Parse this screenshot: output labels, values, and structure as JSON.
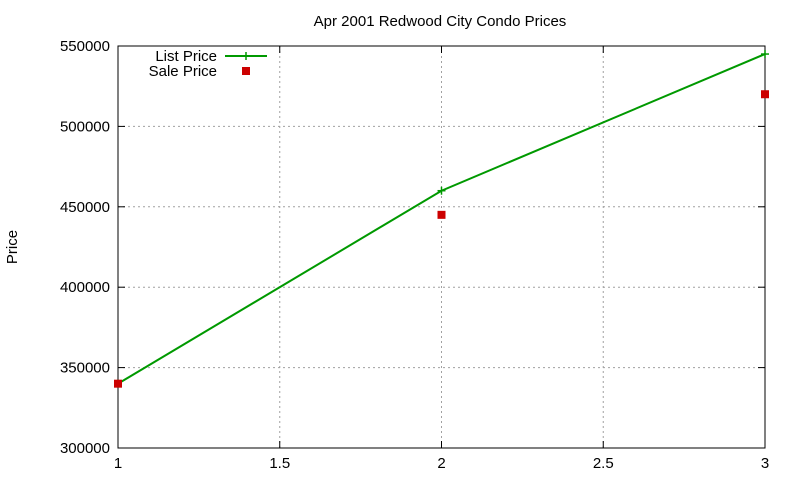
{
  "chart_data": {
    "type": "line",
    "title": "Apr 2001 Redwood City Condo Prices",
    "xlabel": "",
    "ylabel": "Price",
    "xlim": [
      1,
      3
    ],
    "ylim": [
      300000,
      550000
    ],
    "x_ticks": [
      1,
      1.5,
      2,
      2.5,
      3
    ],
    "x_tick_labels": [
      "1",
      "1.5",
      "2",
      "2.5",
      "3"
    ],
    "y_ticks": [
      300000,
      350000,
      400000,
      450000,
      500000,
      550000
    ],
    "y_tick_labels": [
      "300000",
      "350000",
      "400000",
      "450000",
      "500000",
      "550000"
    ],
    "grid": true,
    "legend_position": "top-left",
    "series": [
      {
        "name": "List Price",
        "style": "linespoints",
        "marker": "plus",
        "color": "#009900",
        "x": [
          1,
          2,
          3
        ],
        "y": [
          340000,
          460000,
          545000
        ]
      },
      {
        "name": "Sale Price",
        "style": "points",
        "marker": "square",
        "color": "#cc0000",
        "x": [
          1,
          2,
          3
        ],
        "y": [
          340000,
          445000,
          520000
        ]
      }
    ]
  }
}
